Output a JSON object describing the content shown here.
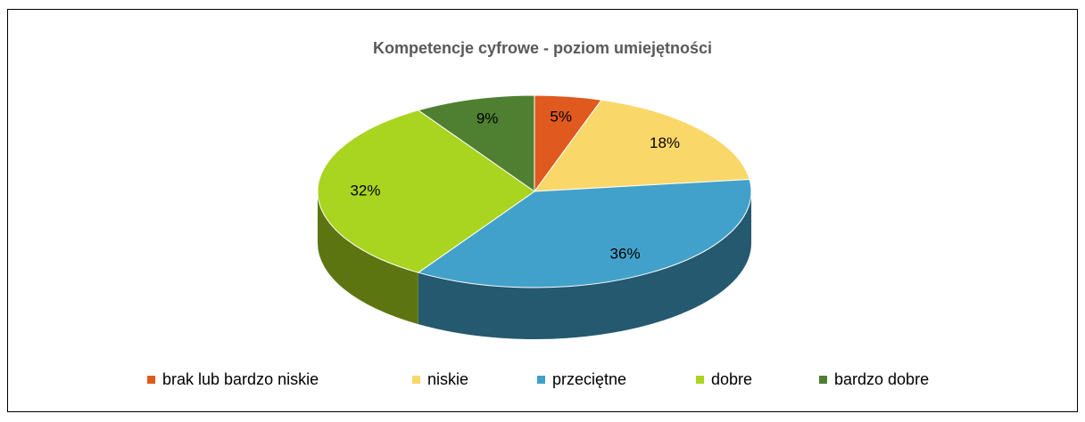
{
  "chart_data": {
    "type": "pie3d",
    "title": "Kompetencje cyfrowe - poziom umiejętności",
    "categories": [
      "brak lub bardzo niskie",
      "niskie",
      "przeciętne",
      "dobre",
      "bardzo dobre"
    ],
    "values": [
      5,
      18,
      36,
      32,
      9
    ],
    "value_labels": [
      "5%",
      "18%",
      "36%",
      "32%",
      "9%"
    ],
    "colors": [
      "#e0591f",
      "#fad769",
      "#42a1ca",
      "#a9d41f",
      "#4f7f31"
    ],
    "legend": "bottom"
  }
}
